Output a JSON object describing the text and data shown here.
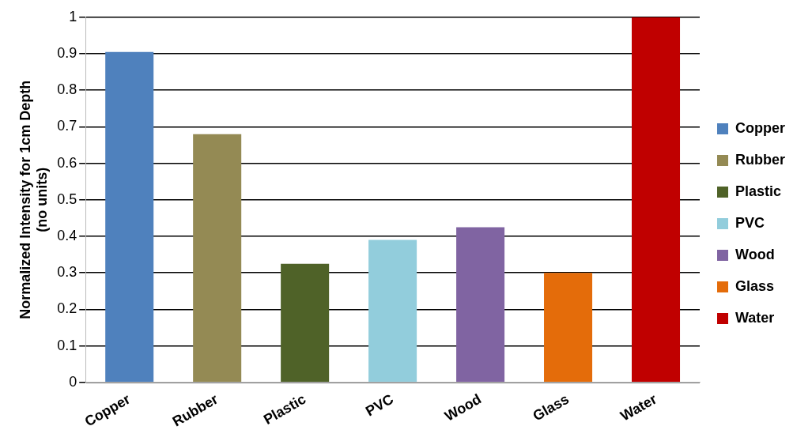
{
  "chart_data": {
    "type": "bar",
    "ylabel": "Normalized Intensity for 1cm Depth\n(no units)",
    "categories": [
      "Copper",
      "Rubber",
      "Plastic",
      "PVC",
      "Wood",
      "Glass",
      "Water"
    ],
    "series": [
      {
        "name": "Copper",
        "color": "#4f81bd",
        "values": [
          0.905,
          null,
          null,
          null,
          null,
          null,
          null
        ]
      },
      {
        "name": "Rubber",
        "color": "#948a54",
        "values": [
          null,
          0.68,
          null,
          null,
          null,
          null,
          null
        ]
      },
      {
        "name": "Plastic",
        "color": "#4f6228",
        "values": [
          null,
          null,
          0.325,
          null,
          null,
          null,
          null
        ]
      },
      {
        "name": "PVC",
        "color": "#92cddc",
        "values": [
          null,
          null,
          null,
          0.39,
          null,
          null,
          null
        ]
      },
      {
        "name": "Wood",
        "color": "#8064a2",
        "values": [
          null,
          null,
          null,
          null,
          0.425,
          null,
          null
        ]
      },
      {
        "name": "Glass",
        "color": "#e46c0a",
        "values": [
          null,
          null,
          null,
          null,
          null,
          0.3,
          null
        ]
      },
      {
        "name": "Water",
        "color": "#c00000",
        "values": [
          null,
          null,
          null,
          null,
          null,
          null,
          1.0
        ]
      }
    ],
    "ylim": [
      0,
      1
    ],
    "yticks": [
      0,
      0.1,
      0.2,
      0.3,
      0.4,
      0.5,
      0.6,
      0.7,
      0.8,
      0.9,
      1
    ],
    "grid": "y",
    "legend": "right"
  }
}
